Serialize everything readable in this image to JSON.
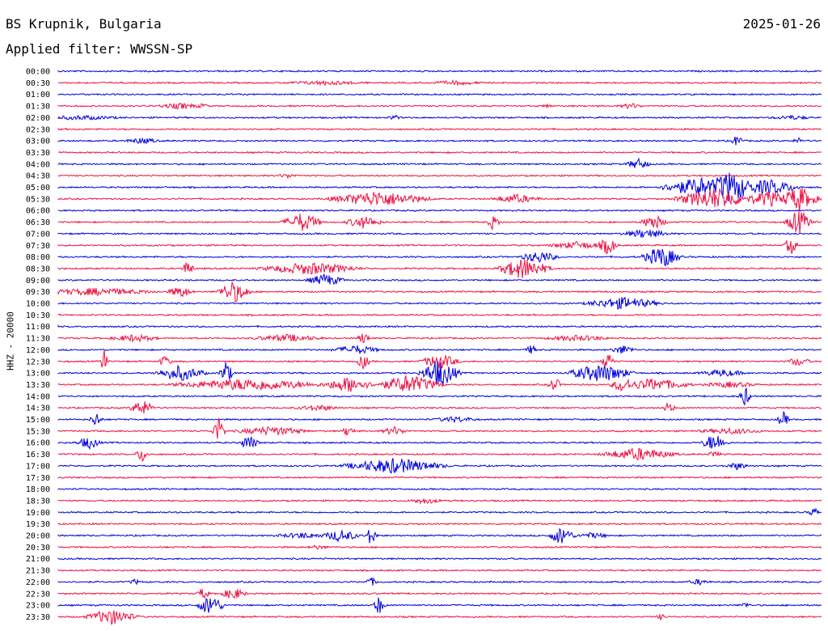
{
  "header": {
    "station": "BS Krupnik, Bulgaria",
    "date": "2025-01-26",
    "filter": "Applied filter: WWSSN-SP"
  },
  "chart_data": {
    "type": "line",
    "title": "BS Krupnik, Bulgaria",
    "ylabel": "HHZ - 20000",
    "row_labels": [
      "00:00",
      "00:30",
      "01:00",
      "01:30",
      "02:00",
      "02:30",
      "03:00",
      "03:30",
      "04:00",
      "04:30",
      "05:00",
      "05:30",
      "06:00",
      "06:30",
      "07:00",
      "07:30",
      "08:00",
      "08:30",
      "09:00",
      "09:30",
      "10:00",
      "10:30",
      "11:00",
      "11:30",
      "12:00",
      "12:30",
      "13:00",
      "13:30",
      "14:00",
      "14:30",
      "15:00",
      "15:30",
      "16:00",
      "16:30",
      "17:00",
      "17:30",
      "18:00",
      "18:30",
      "19:00",
      "19:30",
      "20:00",
      "20:30",
      "21:00",
      "21:30",
      "22:00",
      "22:30",
      "23:00",
      "23:30"
    ],
    "colors": [
      "#0000dd",
      "#ee1144"
    ],
    "events": {
      "00:00": [
        [
          0.3,
          1,
          15
        ]
      ],
      "00:30": [
        [
          0.35,
          3,
          80
        ],
        [
          0.52,
          3,
          50
        ]
      ],
      "01:30": [
        [
          0.16,
          4,
          40
        ],
        [
          0.19,
          4,
          10
        ],
        [
          0.64,
          3,
          10
        ],
        [
          0.75,
          4,
          20
        ]
      ],
      "02:00": [
        [
          0.03,
          3,
          80
        ],
        [
          0.44,
          4,
          10
        ],
        [
          0.96,
          3,
          40
        ]
      ],
      "03:00": [
        [
          0.11,
          4,
          30
        ],
        [
          0.89,
          8,
          10
        ],
        [
          0.97,
          4,
          10
        ]
      ],
      "04:00": [
        [
          0.76,
          7,
          20
        ]
      ],
      "04:30": [
        [
          0.3,
          3,
          20
        ]
      ],
      "05:00": [
        [
          0.84,
          12,
          60
        ],
        [
          0.88,
          20,
          40
        ],
        [
          0.93,
          10,
          50
        ]
      ],
      "05:30": [
        [
          0.42,
          10,
          80
        ],
        [
          0.6,
          6,
          40
        ],
        [
          0.86,
          14,
          60
        ],
        [
          0.93,
          10,
          40
        ],
        [
          0.97,
          16,
          30
        ]
      ],
      "06:30": [
        [
          0.32,
          12,
          30
        ],
        [
          0.4,
          8,
          30
        ],
        [
          0.57,
          10,
          10
        ],
        [
          0.78,
          10,
          20
        ],
        [
          0.97,
          16,
          20
        ]
      ],
      "07:00": [
        [
          0.77,
          6,
          40
        ]
      ],
      "07:30": [
        [
          0.68,
          5,
          50
        ],
        [
          0.72,
          12,
          15
        ],
        [
          0.96,
          12,
          10
        ]
      ],
      "08:00": [
        [
          0.63,
          8,
          30
        ],
        [
          0.79,
          14,
          30
        ]
      ],
      "08:30": [
        [
          0.17,
          10,
          10
        ],
        [
          0.33,
          8,
          80
        ],
        [
          0.61,
          14,
          40
        ]
      ],
      "09:00": [
        [
          0.35,
          8,
          30
        ]
      ],
      "09:30": [
        [
          0.05,
          5,
          100
        ],
        [
          0.16,
          8,
          20
        ],
        [
          0.23,
          14,
          25
        ]
      ],
      "10:00": [
        [
          0.74,
          8,
          60
        ]
      ],
      "11:30": [
        [
          0.1,
          5,
          40
        ],
        [
          0.3,
          5,
          60
        ],
        [
          0.4,
          8,
          10
        ],
        [
          0.68,
          4,
          60
        ]
      ],
      "12:00": [
        [
          0.39,
          6,
          40
        ],
        [
          0.62,
          6,
          10
        ],
        [
          0.74,
          6,
          20
        ]
      ],
      "12:30": [
        [
          0.06,
          20,
          5
        ],
        [
          0.14,
          8,
          10
        ],
        [
          0.4,
          10,
          10
        ],
        [
          0.5,
          10,
          30
        ],
        [
          0.72,
          12,
          10
        ],
        [
          0.97,
          6,
          20
        ]
      ],
      "13:00": [
        [
          0.16,
          10,
          40
        ],
        [
          0.22,
          16,
          10
        ],
        [
          0.5,
          18,
          30
        ],
        [
          0.71,
          12,
          50
        ],
        [
          0.87,
          5,
          40
        ]
      ],
      "13:30": [
        [
          0.25,
          8,
          120
        ],
        [
          0.38,
          10,
          40
        ],
        [
          0.46,
          12,
          50
        ],
        [
          0.65,
          10,
          10
        ],
        [
          0.74,
          10,
          20
        ],
        [
          0.78,
          8,
          60
        ],
        [
          0.88,
          4,
          50
        ]
      ],
      "14:00": [
        [
          0.9,
          12,
          10
        ]
      ],
      "14:30": [
        [
          0.11,
          10,
          20
        ],
        [
          0.34,
          4,
          40
        ],
        [
          0.8,
          8,
          10
        ]
      ],
      "15:00": [
        [
          0.05,
          10,
          10
        ],
        [
          0.52,
          4,
          40
        ],
        [
          0.95,
          10,
          10
        ]
      ],
      "15:30": [
        [
          0.21,
          18,
          10
        ],
        [
          0.28,
          6,
          60
        ],
        [
          0.38,
          8,
          10
        ],
        [
          0.44,
          6,
          20
        ],
        [
          0.88,
          4,
          60
        ]
      ],
      "16:00": [
        [
          0.04,
          8,
          20
        ],
        [
          0.25,
          10,
          15
        ],
        [
          0.86,
          12,
          20
        ]
      ],
      "16:30": [
        [
          0.11,
          10,
          10
        ],
        [
          0.76,
          8,
          60
        ],
        [
          0.86,
          6,
          10
        ]
      ],
      "17:00": [
        [
          0.44,
          10,
          80
        ],
        [
          0.89,
          5,
          20
        ]
      ],
      "18:30": [
        [
          0.48,
          4,
          30
        ]
      ],
      "19:00": [
        [
          0.99,
          6,
          10
        ]
      ],
      "20:00": [
        [
          0.32,
          4,
          50
        ],
        [
          0.37,
          8,
          30
        ],
        [
          0.41,
          12,
          10
        ],
        [
          0.66,
          12,
          20
        ],
        [
          0.7,
          4,
          30
        ]
      ],
      "20:30": [
        [
          0.34,
          3,
          20
        ]
      ],
      "22:00": [
        [
          0.1,
          4,
          10
        ],
        [
          0.41,
          6,
          10
        ],
        [
          0.84,
          4,
          20
        ]
      ],
      "22:30": [
        [
          0.19,
          8,
          10
        ],
        [
          0.23,
          8,
          20
        ]
      ],
      "23:00": [
        [
          0.2,
          14,
          20
        ],
        [
          0.42,
          12,
          10
        ],
        [
          0.9,
          4,
          10
        ]
      ],
      "23:30": [
        [
          0.07,
          10,
          40
        ],
        [
          0.79,
          4,
          10
        ]
      ]
    }
  }
}
